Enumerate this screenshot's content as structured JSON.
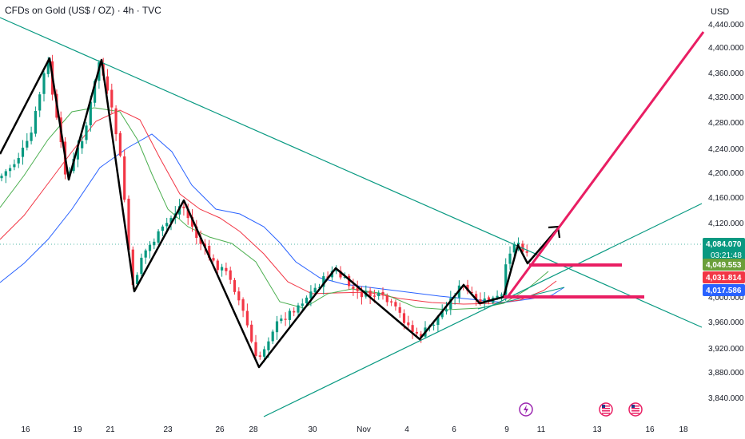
{
  "header": {
    "title": "CFDs on Gold (US$ / OZ) · 4h · TVC",
    "currency": "USD"
  },
  "chart_data": {
    "type": "candlestick",
    "y_axis": {
      "ticks": [
        "4,400.000",
        "4,360.000",
        "4,320.000",
        "4,280.000",
        "4,240.000",
        "4,200.000",
        "4,160.000",
        "4,120.000",
        "3,960.000",
        "3,920.000",
        "3,880.000",
        "3,840.000"
      ],
      "partial_ticks": [
        "4,440.000",
        "4,000.000"
      ]
    },
    "x_axis": {
      "ticks": [
        "16",
        "19",
        "21",
        "23",
        "26",
        "28",
        "30",
        "Nov",
        "4",
        "6",
        "9",
        "11",
        "13",
        "16",
        "18"
      ]
    },
    "price_labels": [
      {
        "value": "4,084.070",
        "sub": "03:21:48",
        "color": "#089981"
      },
      {
        "value": "4,049.553",
        "color": "#6a9f3a"
      },
      {
        "value": "4,031.814",
        "color": "#f23645"
      },
      {
        "value": "4,017.586",
        "color": "#2962ff"
      }
    ],
    "event_icons": [
      "lightning-event",
      "us-flag-event",
      "us-flag-event"
    ],
    "colors": {
      "up": "#089981",
      "down": "#f23645",
      "trendline": "#089981",
      "zigzag": "#000000",
      "projection": "#e91e63",
      "ma_blue": "#2962ff",
      "ma_red": "#f23645",
      "ma_green": "#4caf50"
    }
  }
}
